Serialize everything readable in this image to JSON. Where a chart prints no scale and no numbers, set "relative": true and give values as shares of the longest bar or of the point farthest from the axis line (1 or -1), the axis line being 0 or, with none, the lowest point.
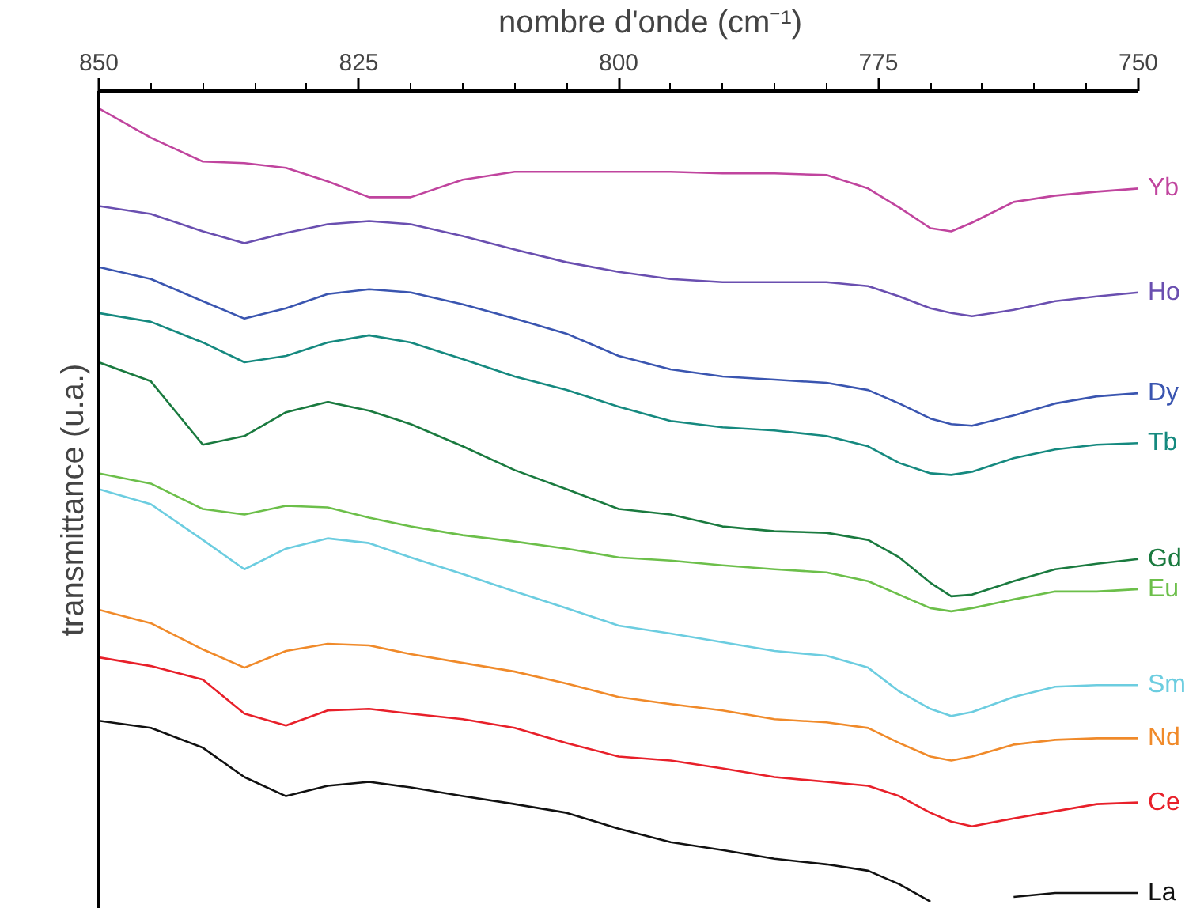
{
  "chart_data": {
    "type": "line",
    "xlabel": "nombre d'onde (cm⁻¹)",
    "ylabel": "transmittance (u.a.)",
    "relative": true,
    "grid": false,
    "marker": "none",
    "line_style": "solid",
    "xlim": [
      850,
      750
    ],
    "xticks": [
      850,
      825,
      800,
      775,
      750
    ],
    "x": [
      850,
      845,
      840,
      836,
      832,
      828,
      824,
      820,
      815,
      810,
      805,
      800,
      795,
      790,
      785,
      780,
      776,
      773,
      770,
      768,
      766,
      762,
      758,
      754,
      750
    ],
    "series": [
      {
        "name": "Yb",
        "color": "#c0449e",
        "values": [
          1.0,
          0.963,
          0.933,
          0.931,
          0.925,
          0.908,
          0.888,
          0.888,
          0.91,
          0.92,
          0.92,
          0.92,
          0.92,
          0.918,
          0.918,
          0.916,
          0.899,
          0.875,
          0.849,
          0.845,
          0.856,
          0.882,
          0.89,
          0.895,
          0.899
        ]
      },
      {
        "name": "Ho",
        "color": "#6a4fb0",
        "values": [
          0.877,
          0.867,
          0.845,
          0.83,
          0.843,
          0.854,
          0.858,
          0.854,
          0.839,
          0.822,
          0.806,
          0.794,
          0.785,
          0.781,
          0.781,
          0.781,
          0.776,
          0.763,
          0.748,
          0.742,
          0.738,
          0.746,
          0.757,
          0.763,
          0.768
        ]
      },
      {
        "name": "Dy",
        "color": "#3a55b0",
        "values": [
          0.8,
          0.785,
          0.757,
          0.735,
          0.748,
          0.766,
          0.772,
          0.768,
          0.753,
          0.735,
          0.716,
          0.688,
          0.671,
          0.662,
          0.658,
          0.654,
          0.645,
          0.628,
          0.609,
          0.602,
          0.6,
          0.613,
          0.628,
          0.637,
          0.641
        ]
      },
      {
        "name": "Tb",
        "color": "#15897f",
        "values": [
          0.742,
          0.731,
          0.705,
          0.68,
          0.688,
          0.705,
          0.714,
          0.705,
          0.684,
          0.662,
          0.645,
          0.624,
          0.606,
          0.598,
          0.594,
          0.587,
          0.574,
          0.553,
          0.54,
          0.538,
          0.542,
          0.559,
          0.57,
          0.576,
          0.578
        ]
      },
      {
        "name": "Gd",
        "color": "#1a7a3f",
        "values": [
          0.68,
          0.656,
          0.576,
          0.587,
          0.617,
          0.63,
          0.619,
          0.602,
          0.574,
          0.544,
          0.52,
          0.495,
          0.488,
          0.473,
          0.467,
          0.465,
          0.456,
          0.434,
          0.402,
          0.385,
          0.387,
          0.404,
          0.419,
          0.426,
          0.432
        ]
      },
      {
        "name": "Eu",
        "color": "#6cbf4a",
        "values": [
          0.54,
          0.527,
          0.495,
          0.488,
          0.499,
          0.497,
          0.484,
          0.473,
          0.462,
          0.454,
          0.445,
          0.434,
          0.43,
          0.424,
          0.419,
          0.415,
          0.404,
          0.387,
          0.37,
          0.366,
          0.37,
          0.381,
          0.391,
          0.391,
          0.394
        ]
      },
      {
        "name": "Sm",
        "color": "#6ccde0",
        "values": [
          0.52,
          0.501,
          0.456,
          0.419,
          0.445,
          0.458,
          0.452,
          0.434,
          0.413,
          0.391,
          0.37,
          0.348,
          0.338,
          0.327,
          0.316,
          0.31,
          0.295,
          0.265,
          0.243,
          0.234,
          0.239,
          0.258,
          0.271,
          0.273,
          0.273
        ]
      },
      {
        "name": "Nd",
        "color": "#f08a2a",
        "values": [
          0.368,
          0.351,
          0.318,
          0.295,
          0.316,
          0.325,
          0.323,
          0.312,
          0.301,
          0.29,
          0.275,
          0.258,
          0.249,
          0.241,
          0.23,
          0.226,
          0.219,
          0.2,
          0.183,
          0.178,
          0.183,
          0.198,
          0.204,
          0.206,
          0.206
        ]
      },
      {
        "name": "Ce",
        "color": "#e8202a",
        "values": [
          0.308,
          0.297,
          0.28,
          0.237,
          0.222,
          0.241,
          0.243,
          0.237,
          0.23,
          0.219,
          0.2,
          0.183,
          0.178,
          0.168,
          0.157,
          0.151,
          0.146,
          0.133,
          0.112,
          0.101,
          0.095,
          0.105,
          0.114,
          0.123,
          0.125
        ]
      },
      {
        "name": "La",
        "color": "#111111",
        "values": [
          0.228,
          0.219,
          0.194,
          0.157,
          0.133,
          0.146,
          0.151,
          0.144,
          0.133,
          0.123,
          0.112,
          0.092,
          0.075,
          0.065,
          0.054,
          0.047,
          0.039,
          0.022,
          0.0,
          null,
          null,
          0.006,
          0.011,
          0.011,
          0.011
        ]
      }
    ]
  }
}
